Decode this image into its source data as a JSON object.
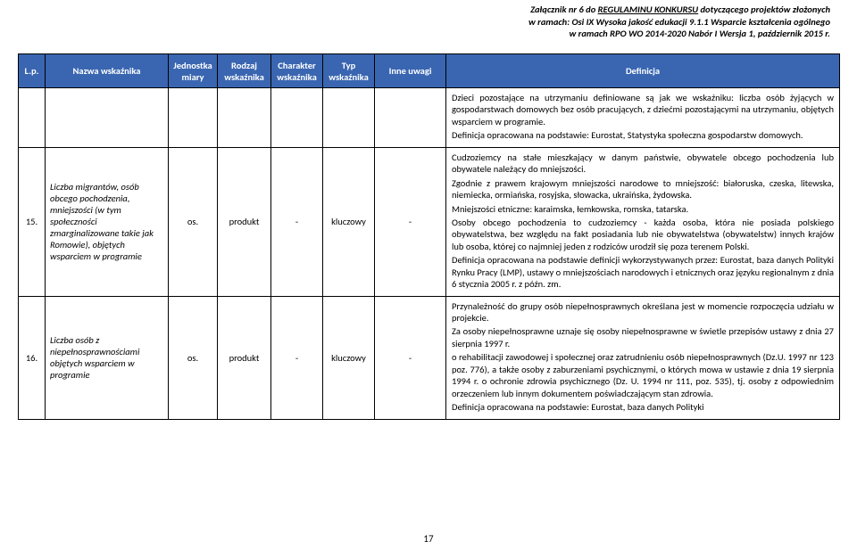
{
  "header": {
    "line1a": "Załącznik nr 6 do ",
    "line1b": "REGULAMINU KONKURSU",
    "line1c": " dotyczącego projektów złożonych",
    "line2": "w ramach: Osi IX Wysoka jakość edukacji 9.1.1 Wsparcie kształcenia ogólnego",
    "line3": "w ramach RPO WO 2014-2020 Nabór I Wersja 1, październik 2015 r."
  },
  "columns": {
    "lp": "L.p.",
    "name": "Nazwa wskaźnika",
    "unit": "Jednostka miary",
    "kind": "Rodzaj wskaźnika",
    "char": "Charakter wskaźnika",
    "type": "Typ wskaźnika",
    "notes": "Inne uwagi",
    "def": "Definicja"
  },
  "rows": [
    {
      "lp": "",
      "name": "",
      "unit": "",
      "kind": "",
      "char": "",
      "type": "",
      "notes": "",
      "def_p1": "Dzieci pozostające na utrzymaniu definiowane są jak we wskaźniku: liczba osób żyjących w gospodarstwach domowych bez osób pracujących, z dziećmi pozostającymi na utrzymaniu, objętych wsparciem w programie.",
      "def_p2": "Definicja opracowana na podstawie: Eurostat, Statystyka społeczna gospodarstw domowych."
    },
    {
      "lp": "15.",
      "name": "Liczba migrantów, osób obcego pochodzenia, mniejszości (w tym społeczności zmarginalizowane takie jak Romowie), objętych wsparciem w programie",
      "unit": "os.",
      "kind": "produkt",
      "char": "-",
      "type": "kluczowy",
      "notes": "-",
      "def_p1": "Cudzoziemcy na stałe mieszkający w danym państwie, obywatele obcego pochodzenia lub obywatele należący do mniejszości.",
      "def_p2": "Zgodnie z prawem krajowym mniejszości narodowe to mniejszość: białoruska, czeska, litewska, niemiecka, ormiańska, rosyjska, słowacka, ukraińska, żydowska.",
      "def_p3": "Mniejszości etniczne: karaimska, łemkowska, romska, tatarska.",
      "def_p4": "Osoby obcego pochodzenia to cudzoziemcy - każda osoba, która nie posiada polskiego obywatelstwa, bez względu na fakt posiadania lub nie obywatelstwa (obywatelstw) innych krajów lub osoba, której co najmniej jeden z rodziców urodził się poza terenem Polski.",
      "def_p5": "Definicja opracowana na podstawie definicji wykorzystywanych przez: Eurostat, baza danych Polityki Rynku Pracy (LMP), ustawy o mniejszościach narodowych i etnicznych oraz języku regionalnym z dnia 6 stycznia 2005 r. z późn. zm."
    },
    {
      "lp": "16.",
      "name": "Liczba osób z niepełnosprawnościami objętych wsparciem w programie",
      "unit": "os.",
      "kind": "produkt",
      "char": "-",
      "type": "kluczowy",
      "notes": "-",
      "def_p1": "Przynależność do grupy osób niepełnosprawnych określana jest w momencie rozpoczęcia udziału w projekcie.",
      "def_p2": "Za osoby niepełnosprawne uznaje się osoby niepełnosprawne w świetle przepisów ustawy z dnia 27 sierpnia 1997 r.",
      "def_p3": "o rehabilitacji zawodowej i społecznej oraz zatrudnieniu osób niepełnosprawnych (Dz.U. 1997 nr 123 poz. 776), a także osoby z zaburzeniami psychicznymi, o których mowa w ustawie z dnia 19 sierpnia 1994 r. o ochronie zdrowia psychicznego (Dz. U. 1994 nr 111, poz. 535), tj. osoby z odpowiednim orzeczeniem lub innym dokumentem poświadczającym stan zdrowia.",
      "def_p4": "Definicja opracowana na podstawie: Eurostat, baza danych Polityki"
    }
  ],
  "pageNumber": "17"
}
